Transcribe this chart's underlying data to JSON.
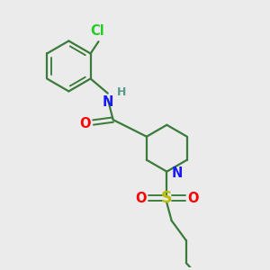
{
  "bg_color": "#ebebeb",
  "bond_color": "#3a7a3a",
  "bond_lw": 1.6,
  "N_color": "#1a1aff",
  "O_color": "#ff0000",
  "S_color": "#bbbb00",
  "Cl_color": "#22cc22",
  "H_color": "#5a9a8a",
  "font_size": 10.5,
  "xlim": [
    0,
    10
  ],
  "ylim": [
    0,
    10
  ]
}
